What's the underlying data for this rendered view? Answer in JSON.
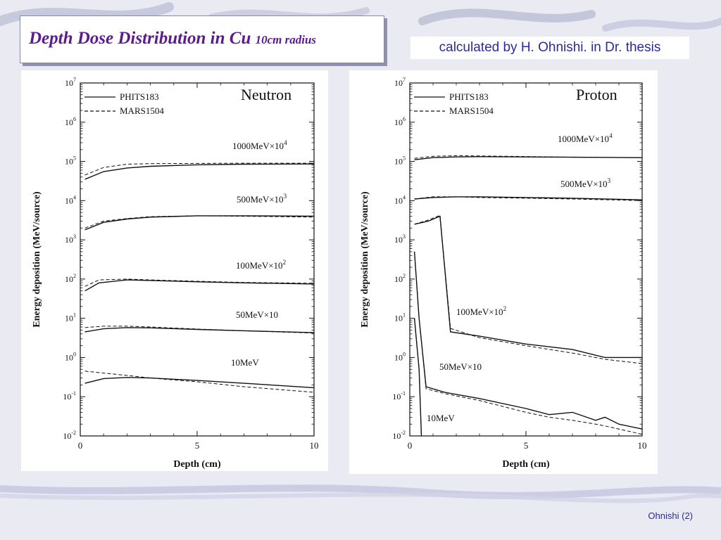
{
  "slide": {
    "title": "Depth Dose Distribution in Cu",
    "title_suffix": "10cm radius",
    "credit": "calculated by H. Ohnishi. in Dr. thesis",
    "footer": "Ohnishi (2)"
  },
  "chart_data": [
    {
      "type": "line",
      "panel_label": "Neutron",
      "xlabel": "Depth (cm)",
      "ylabel": "Energy deposition (MeV/source)",
      "xlim": [
        0,
        10
      ],
      "ylim": [
        0.01,
        10000000
      ],
      "yscale": "log",
      "x_ticks": [
        "0",
        "5",
        "10"
      ],
      "y_ticks": [
        "10-2",
        "10-1",
        "100",
        "101",
        "102",
        "103",
        "104",
        "105",
        "106",
        "107"
      ],
      "legend": {
        "position": "top-left",
        "entries": [
          {
            "name": "PHITS183",
            "style": "solid"
          },
          {
            "name": "MARS1504",
            "style": "dashed"
          }
        ]
      },
      "curve_labels": [
        {
          "base": "1000MeV×10",
          "exp": "4"
        },
        {
          "base": "500MeV×10",
          "exp": "3"
        },
        {
          "base": "100MeV×10",
          "exp": "2"
        },
        {
          "base": "50MeV×10",
          "exp": ""
        },
        {
          "base": "10MeV",
          "exp": ""
        }
      ],
      "series": [
        {
          "name": "PHITS183",
          "curve": "1000MeV",
          "x": [
            0.2,
            1,
            2,
            3,
            5,
            7,
            10
          ],
          "y": [
            35000,
            55000,
            68000,
            75000,
            82000,
            85000,
            86000
          ]
        },
        {
          "name": "MARS1504",
          "curve": "1000MeV",
          "x": [
            0.2,
            1,
            2,
            3,
            5,
            7,
            10
          ],
          "y": [
            45000,
            70000,
            85000,
            88000,
            89000,
            90000,
            90000
          ]
        },
        {
          "name": "PHITS183",
          "curve": "500MeV",
          "x": [
            0.2,
            1,
            2,
            3,
            5,
            7,
            10
          ],
          "y": [
            1800,
            2800,
            3400,
            3800,
            4100,
            4100,
            4000
          ]
        },
        {
          "name": "MARS1504",
          "curve": "500MeV",
          "x": [
            0.2,
            1,
            2,
            3,
            5,
            7,
            10
          ],
          "y": [
            2000,
            3000,
            3500,
            3900,
            4100,
            4000,
            3800
          ]
        },
        {
          "name": "PHITS183",
          "curve": "100MeV",
          "x": [
            0.2,
            0.8,
            2,
            3,
            5,
            7,
            10
          ],
          "y": [
            50,
            80,
            95,
            92,
            85,
            80,
            75
          ]
        },
        {
          "name": "MARS1504",
          "curve": "100MeV",
          "x": [
            0.2,
            0.8,
            2,
            3,
            5,
            7,
            10
          ],
          "y": [
            65,
            95,
            100,
            95,
            88,
            82,
            78
          ]
        },
        {
          "name": "PHITS183",
          "curve": "50MeV",
          "x": [
            0.2,
            1,
            2,
            3,
            5,
            7,
            10
          ],
          "y": [
            4.5,
            5.4,
            5.8,
            5.7,
            5.2,
            4.8,
            4.3
          ]
        },
        {
          "name": "MARS1504",
          "curve": "50MeV",
          "x": [
            0.2,
            1,
            2,
            3,
            5,
            7,
            10
          ],
          "y": [
            5.8,
            6.3,
            6.3,
            6.0,
            5.3,
            4.8,
            4.2
          ]
        },
        {
          "name": "PHITS183",
          "curve": "10MeV",
          "x": [
            0.2,
            1,
            2,
            3,
            5,
            7,
            10
          ],
          "y": [
            0.22,
            0.29,
            0.31,
            0.3,
            0.26,
            0.22,
            0.17
          ]
        },
        {
          "name": "MARS1504",
          "curve": "10MeV",
          "x": [
            0.2,
            1,
            2,
            3,
            5,
            7,
            10
          ],
          "y": [
            0.45,
            0.4,
            0.35,
            0.3,
            0.24,
            0.18,
            0.13
          ]
        }
      ]
    },
    {
      "type": "line",
      "panel_label": "Proton",
      "xlabel": "Depth (cm)",
      "ylabel": "Energy deposition (MeV/source)",
      "xlim": [
        0,
        10
      ],
      "ylim": [
        0.01,
        10000000
      ],
      "yscale": "log",
      "x_ticks": [
        "0",
        "5",
        "10"
      ],
      "y_ticks": [
        "10-2",
        "10-1",
        "100",
        "101",
        "102",
        "103",
        "104",
        "105",
        "106",
        "107"
      ],
      "legend": {
        "position": "top-left",
        "entries": [
          {
            "name": "PHITS183",
            "style": "solid"
          },
          {
            "name": "MARS1504",
            "style": "dashed"
          }
        ]
      },
      "curve_labels": [
        {
          "base": "1000MeV×10",
          "exp": "4"
        },
        {
          "base": "500MeV×10",
          "exp": "3"
        },
        {
          "base": "100MeV×10",
          "exp": "2"
        },
        {
          "base": "50MeV×10",
          "exp": ""
        },
        {
          "base": "10MeV",
          "exp": ""
        }
      ],
      "series": [
        {
          "name": "PHITS183",
          "curve": "1000MeV",
          "x": [
            0.2,
            1,
            2,
            3,
            5,
            7,
            10
          ],
          "y": [
            110000,
            125000,
            130000,
            132000,
            130000,
            128000,
            125000
          ]
        },
        {
          "name": "MARS1504",
          "curve": "1000MeV",
          "x": [
            0.2,
            1,
            2,
            3,
            5,
            7,
            10
          ],
          "y": [
            120000,
            135000,
            140000,
            138000,
            133000,
            128000,
            125000
          ]
        },
        {
          "name": "PHITS183",
          "curve": "500MeV",
          "x": [
            0.2,
            1,
            2,
            3,
            5,
            7,
            10
          ],
          "y": [
            11000,
            12000,
            12500,
            12500,
            12000,
            11500,
            10500
          ]
        },
        {
          "name": "MARS1504",
          "curve": "500MeV",
          "x": [
            0.2,
            1,
            2,
            3,
            5,
            7,
            10
          ],
          "y": [
            11000,
            12500,
            12500,
            12000,
            11500,
            11000,
            10000
          ]
        },
        {
          "name": "PHITS183",
          "curve": "100MeV",
          "x": [
            0.2,
            0.8,
            1.3,
            1.75,
            3,
            5,
            7,
            8.4,
            10
          ],
          "y": [
            2500,
            3000,
            4000,
            4.5,
            3.5,
            2.2,
            1.6,
            1.0,
            1.0
          ]
        },
        {
          "name": "MARS1504",
          "curve": "100MeV",
          "x": [
            0.2,
            0.8,
            1.3,
            1.75,
            3,
            5,
            7,
            8.4,
            10
          ],
          "y": [
            2500,
            3200,
            4200,
            5.5,
            3.2,
            2.0,
            1.3,
            0.9,
            0.7
          ]
        },
        {
          "name": "PHITS183",
          "curve": "50MeV",
          "x": [
            0.2,
            0.4,
            0.7,
            1.5,
            3,
            5,
            6,
            7,
            8,
            8.4,
            9,
            10
          ],
          "y": [
            500,
            10,
            0.18,
            0.13,
            0.09,
            0.05,
            0.035,
            0.04,
            0.025,
            0.03,
            0.02,
            0.015
          ]
        },
        {
          "name": "MARS1504",
          "curve": "50MeV",
          "x": [
            0.2,
            0.4,
            0.7,
            1.5,
            3,
            5,
            6,
            7,
            8,
            8.4,
            9,
            10
          ],
          "y": [
            500,
            10,
            0.16,
            0.12,
            0.08,
            0.04,
            0.03,
            0.025,
            0.02,
            0.018,
            0.015,
            0.011
          ]
        },
        {
          "name": "PHITS183",
          "curve": "10MeV",
          "x": [
            0.2,
            0.4,
            0.5
          ],
          "y": [
            10,
            0.5,
            0.01
          ]
        },
        {
          "name": "MARS1504",
          "curve": "10MeV",
          "x": [
            0.2,
            0.4,
            0.5
          ],
          "y": [
            10,
            0.5,
            0.01
          ]
        }
      ]
    }
  ]
}
